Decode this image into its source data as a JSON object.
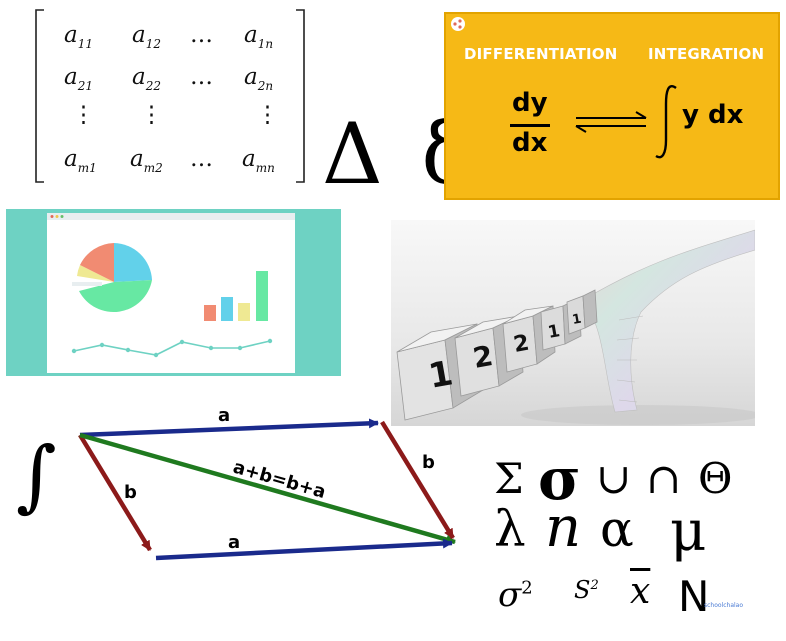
{
  "matrix": {
    "rows": [
      [
        "a11",
        "a12",
        "…",
        "a1n"
      ],
      [
        "a21",
        "a22",
        "…",
        "a2n"
      ],
      [
        "⋮",
        "⋮",
        "",
        "⋮"
      ],
      [
        "am1",
        "am2",
        "…",
        "amn"
      ]
    ],
    "cells": {
      "r1c1": {
        "base": "a",
        "sub": "11"
      },
      "r1c2": {
        "base": "a",
        "sub": "12"
      },
      "r1c3": "…",
      "r1c4": {
        "base": "a",
        "sub": "1n"
      },
      "r2c1": {
        "base": "a",
        "sub": "21"
      },
      "r2c2": {
        "base": "a",
        "sub": "22"
      },
      "r2c3": "…",
      "r2c4": {
        "base": "a",
        "sub": "2n"
      },
      "r3c1": "⋮",
      "r3c2": "⋮",
      "r3c4": "⋮",
      "r4c1": {
        "base": "a",
        "sub": "m1"
      },
      "r4c2": {
        "base": "a",
        "sub": "m2"
      },
      "r4c3": "…",
      "r4c4": {
        "base": "a",
        "sub": "mn"
      }
    }
  },
  "delta_symbols": "Δ δ",
  "calculus": {
    "left_heading": "DIFFERENTIATION",
    "right_heading": "INTEGRATION",
    "derivative_numerator": "dy",
    "derivative_denominator": "dx",
    "integral_expression": "y dx",
    "arrows": "⇌",
    "background_color": "#f6b916"
  },
  "dashboard": {
    "background_color": "#6ed2c3",
    "pie_colors": [
      "#62d1ea",
      "#67e8a3",
      "#f18b72",
      "#efe993"
    ],
    "bar_colors": [
      "#f18b72",
      "#62d1ea",
      "#efe993",
      "#67e8a3"
    ],
    "line_color": "#6ed2c3"
  },
  "blocks": {
    "digits": [
      "1",
      "2",
      "2",
      "1",
      "1"
    ]
  },
  "vectors": {
    "integral_sign": "∫",
    "top_label": "a",
    "bottom_label": "a",
    "left_label": "b",
    "right_label": "b",
    "diagonal_label": "a+b=b+a",
    "colors": {
      "a": "#1a2a8c",
      "b": "#8c1a1a",
      "sum": "#1f7a1f"
    }
  },
  "symbols": {
    "row1": [
      "Σ",
      "σ",
      "∪",
      "∩",
      "Θ"
    ],
    "row2": [
      "λ",
      "n",
      "α",
      "μ"
    ],
    "row3": {
      "sigma": "σ",
      "sigma_exp": "2",
      "s": "S",
      "s_exp": "2",
      "xbar": "x",
      "N": "N"
    },
    "logo_text": "schoolchalao"
  }
}
